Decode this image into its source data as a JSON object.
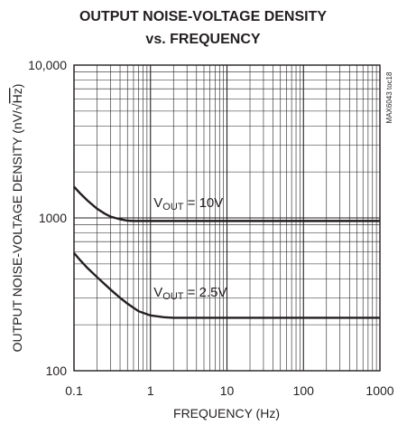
{
  "chart_data": {
    "type": "line",
    "title_line1": "OUTPUT NOISE-VOLTAGE DENSITY",
    "title_line2": "vs. FREQUENCY",
    "xlabel": "FREQUENCY (Hz)",
    "ylabel_prefix": "OUTPUT NOISE-VOLTAGE DENSITY (nV/",
    "ylabel_radical": "√",
    "ylabel_radicand": "Hz",
    "ylabel_suffix": ")",
    "x_scale": "log",
    "y_scale": "log",
    "xlim": [
      0.1,
      1000
    ],
    "ylim": [
      100,
      10000
    ],
    "x_ticks": [
      {
        "value": 0.1,
        "label": "0.1"
      },
      {
        "value": 1,
        "label": "1"
      },
      {
        "value": 10,
        "label": "10"
      },
      {
        "value": 100,
        "label": "100"
      },
      {
        "value": 1000,
        "label": "1000"
      }
    ],
    "y_ticks": [
      {
        "value": 100,
        "label": "100"
      },
      {
        "value": 1000,
        "label": "1000"
      },
      {
        "value": 10000,
        "label": "10,000"
      }
    ],
    "grid": true,
    "watermark": "MAX6043 toc18",
    "series": [
      {
        "annotation_main": "V",
        "annotation_sub": "OUT",
        "annotation_rest": " = 10V",
        "annotation_at": {
          "x": 1.1,
          "y": 1180
        },
        "x": [
          0.1,
          0.12,
          0.15,
          0.2,
          0.25,
          0.3,
          0.4,
          0.5,
          0.6,
          0.8,
          1,
          2,
          5,
          10,
          100,
          1000
        ],
        "y": [
          1600,
          1450,
          1300,
          1150,
          1070,
          1020,
          980,
          960,
          955,
          955,
          955,
          955,
          955,
          955,
          955,
          955
        ]
      },
      {
        "annotation_main": "V",
        "annotation_sub": "OUT",
        "annotation_rest": " = 2.5V",
        "annotation_at": {
          "x": 1.1,
          "y": 305
        },
        "x": [
          0.1,
          0.12,
          0.15,
          0.2,
          0.3,
          0.4,
          0.5,
          0.7,
          1,
          1.5,
          2,
          3,
          5,
          10,
          100,
          1000
        ],
        "y": [
          590,
          530,
          470,
          410,
          340,
          300,
          275,
          245,
          230,
          224,
          222,
          222,
          222,
          222,
          222,
          222
        ]
      }
    ]
  }
}
